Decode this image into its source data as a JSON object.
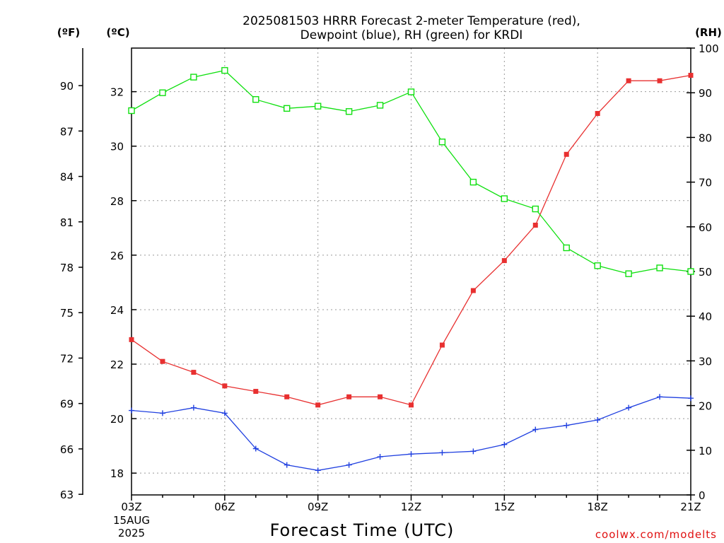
{
  "chart_data": {
    "type": "line",
    "title_lines": [
      "2025081503 HRRR Forecast 2-meter Temperature (red),",
      "Dewpoint (blue), RH (green) for KRDI"
    ],
    "xlabel": "Forecast Time (UTC)",
    "x": [
      "03Z",
      "04Z",
      "05Z",
      "06Z",
      "07Z",
      "08Z",
      "09Z",
      "10Z",
      "11Z",
      "12Z",
      "13Z",
      "14Z",
      "15Z",
      "16Z",
      "17Z",
      "18Z",
      "19Z",
      "20Z",
      "21Z"
    ],
    "x_tick_labels": [
      "03Z",
      "06Z",
      "09Z",
      "12Z",
      "15Z",
      "18Z",
      "21Z"
    ],
    "x_first_tick_extra": [
      "15AUG",
      "2025"
    ],
    "left_axis_f": {
      "label": "(ºF)",
      "ticks": [
        63,
        66,
        69,
        72,
        75,
        78,
        81,
        84,
        87,
        90
      ]
    },
    "left_axis_c": {
      "label": "(ºC)",
      "ylim": [
        17.2,
        33.6
      ],
      "ticks": [
        18,
        20,
        22,
        24,
        26,
        28,
        30,
        32
      ]
    },
    "right_axis_rh": {
      "label": "(RH)",
      "ylim": [
        0,
        100
      ],
      "ticks": [
        0,
        10,
        20,
        30,
        40,
        50,
        60,
        70,
        80,
        90,
        100
      ]
    },
    "grid": true,
    "series": [
      {
        "name": "Temperature",
        "axis": "c",
        "color": "#e83030",
        "marker": "filled-square",
        "values": [
          22.9,
          22.1,
          21.7,
          21.2,
          21.0,
          20.8,
          20.5,
          20.8,
          20.8,
          20.5,
          22.7,
          24.7,
          25.8,
          27.1,
          29.7,
          31.2,
          32.4,
          32.4,
          32.6
        ]
      },
      {
        "name": "Dewpoint",
        "axis": "c",
        "color": "#2040e0",
        "marker": "plus",
        "values": [
          20.3,
          20.2,
          20.4,
          20.2,
          18.9,
          18.3,
          18.1,
          18.3,
          18.6,
          18.7,
          18.75,
          18.8,
          19.05,
          19.6,
          19.75,
          19.95,
          20.4,
          20.8,
          20.75
        ]
      },
      {
        "name": "RH",
        "axis": "rh",
        "color": "#10e010",
        "marker": "open-square",
        "values": [
          86.0,
          90.0,
          93.5,
          95.0,
          88.5,
          86.5,
          87.0,
          85.8,
          87.2,
          90.2,
          79.0,
          70.0,
          66.3,
          64.0,
          55.3,
          51.3,
          49.5,
          50.8,
          50.0
        ]
      }
    ]
  },
  "credit": "coolwx.com/modelts"
}
